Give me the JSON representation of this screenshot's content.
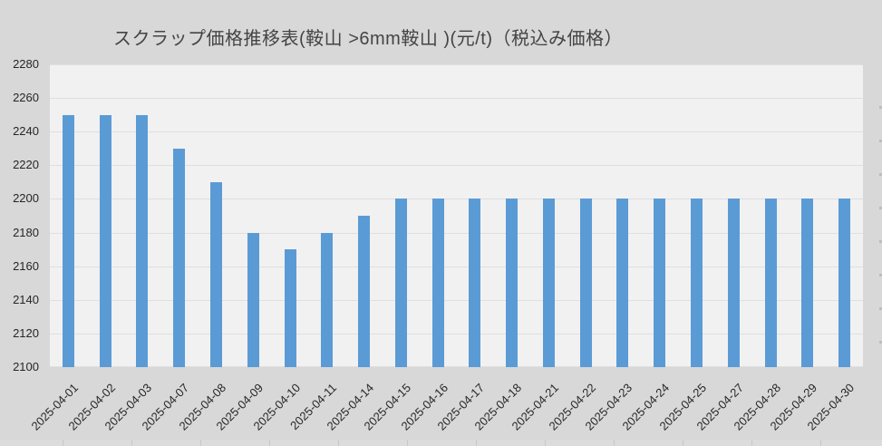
{
  "title": "スクラップ価格推移表(鞍山 >6mm鞍山 )(元/t)（税込み価格）",
  "chart_data": {
    "type": "bar",
    "title": "スクラップ価格推移表(鞍山 >6mm鞍山 )(元/t)（税込み価格）",
    "categories": [
      "2025-04-01",
      "2025-04-02",
      "2025-04-03",
      "2025-04-07",
      "2025-04-08",
      "2025-04-09",
      "2025-04-10",
      "2025-04-11",
      "2025-04-14",
      "2025-04-15",
      "2025-04-16",
      "2025-04-17",
      "2025-04-18",
      "2025-04-21",
      "2025-04-22",
      "2025-04-23",
      "2025-04-24",
      "2025-04-25",
      "2025-04-27",
      "2025-04-28",
      "2025-04-29",
      "2025-04-30"
    ],
    "values": [
      2250,
      2250,
      2250,
      2230,
      2210,
      2180,
      2170,
      2180,
      2190,
      2200,
      2200,
      2200,
      2200,
      2200,
      2200,
      2200,
      2200,
      2200,
      2200,
      2200,
      2200,
      2200
    ],
    "xlabel": "",
    "ylabel": "",
    "ylim": [
      2100,
      2280
    ],
    "ytick_step": 20,
    "yticks": [
      2280,
      2260,
      2240,
      2220,
      2200,
      2180,
      2160,
      2140,
      2120,
      2100
    ],
    "grid": "horizontal",
    "legend": "none",
    "x_tick_rotation_deg": 45,
    "colors": {
      "bar": "#5B9BD5",
      "plot_background": "#F1F1F1",
      "outer_background": "#D8D8D8",
      "gridline": "#DFDFDF",
      "tick_label": "#262626",
      "title_text": "#444444"
    }
  }
}
